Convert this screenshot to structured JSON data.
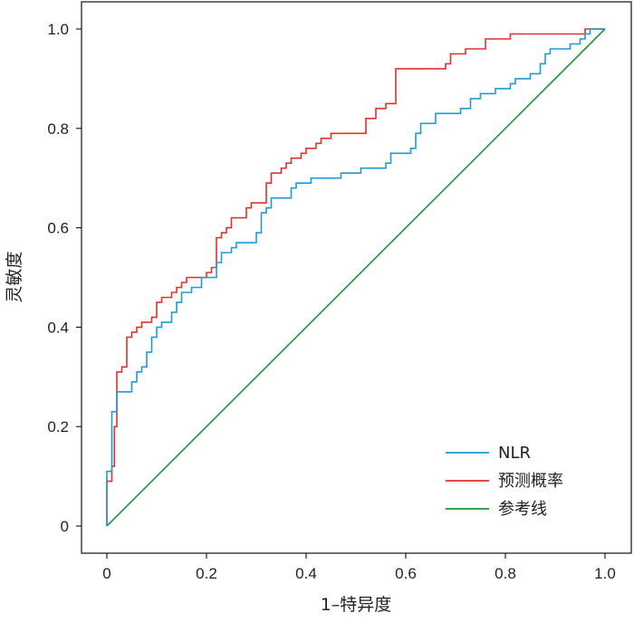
{
  "chart_data": {
    "type": "line",
    "title": "",
    "xlabel": "1–特异度",
    "ylabel": "灵敏度",
    "xlim": [
      0,
      1
    ],
    "ylim": [
      0,
      1
    ],
    "xticks": [
      "0",
      "0.2",
      "0.4",
      "0.6",
      "0.8",
      "1.0"
    ],
    "yticks": [
      "0",
      "0.2",
      "0.4",
      "0.6",
      "0.8",
      "1.0"
    ],
    "grid": false,
    "legend_position": "bottom-right",
    "series": [
      {
        "name": "NLR",
        "color": "#1f9ad6",
        "points": [
          [
            0,
            0
          ],
          [
            0,
            0.11
          ],
          [
            0.01,
            0.11
          ],
          [
            0.01,
            0.23
          ],
          [
            0.02,
            0.23
          ],
          [
            0.02,
            0.27
          ],
          [
            0.05,
            0.27
          ],
          [
            0.05,
            0.29
          ],
          [
            0.06,
            0.29
          ],
          [
            0.06,
            0.31
          ],
          [
            0.07,
            0.31
          ],
          [
            0.07,
            0.32
          ],
          [
            0.08,
            0.32
          ],
          [
            0.08,
            0.35
          ],
          [
            0.09,
            0.35
          ],
          [
            0.09,
            0.38
          ],
          [
            0.1,
            0.38
          ],
          [
            0.1,
            0.4
          ],
          [
            0.11,
            0.4
          ],
          [
            0.11,
            0.41
          ],
          [
            0.13,
            0.41
          ],
          [
            0.13,
            0.43
          ],
          [
            0.14,
            0.43
          ],
          [
            0.14,
            0.45
          ],
          [
            0.15,
            0.45
          ],
          [
            0.15,
            0.47
          ],
          [
            0.17,
            0.47
          ],
          [
            0.17,
            0.48
          ],
          [
            0.19,
            0.48
          ],
          [
            0.19,
            0.5
          ],
          [
            0.22,
            0.5
          ],
          [
            0.22,
            0.53
          ],
          [
            0.23,
            0.53
          ],
          [
            0.23,
            0.55
          ],
          [
            0.25,
            0.55
          ],
          [
            0.25,
            0.56
          ],
          [
            0.26,
            0.56
          ],
          [
            0.26,
            0.57
          ],
          [
            0.3,
            0.57
          ],
          [
            0.3,
            0.59
          ],
          [
            0.31,
            0.59
          ],
          [
            0.31,
            0.63
          ],
          [
            0.32,
            0.63
          ],
          [
            0.32,
            0.64
          ],
          [
            0.33,
            0.64
          ],
          [
            0.33,
            0.66
          ],
          [
            0.37,
            0.66
          ],
          [
            0.37,
            0.68
          ],
          [
            0.38,
            0.68
          ],
          [
            0.38,
            0.69
          ],
          [
            0.41,
            0.69
          ],
          [
            0.41,
            0.7
          ],
          [
            0.47,
            0.7
          ],
          [
            0.47,
            0.71
          ],
          [
            0.51,
            0.71
          ],
          [
            0.51,
            0.72
          ],
          [
            0.56,
            0.72
          ],
          [
            0.56,
            0.73
          ],
          [
            0.57,
            0.73
          ],
          [
            0.57,
            0.75
          ],
          [
            0.61,
            0.75
          ],
          [
            0.61,
            0.76
          ],
          [
            0.62,
            0.76
          ],
          [
            0.62,
            0.79
          ],
          [
            0.63,
            0.79
          ],
          [
            0.63,
            0.81
          ],
          [
            0.66,
            0.81
          ],
          [
            0.66,
            0.83
          ],
          [
            0.71,
            0.83
          ],
          [
            0.71,
            0.84
          ],
          [
            0.73,
            0.84
          ],
          [
            0.73,
            0.86
          ],
          [
            0.75,
            0.86
          ],
          [
            0.75,
            0.87
          ],
          [
            0.78,
            0.87
          ],
          [
            0.78,
            0.88
          ],
          [
            0.81,
            0.88
          ],
          [
            0.81,
            0.89
          ],
          [
            0.82,
            0.89
          ],
          [
            0.82,
            0.9
          ],
          [
            0.85,
            0.9
          ],
          [
            0.85,
            0.91
          ],
          [
            0.87,
            0.91
          ],
          [
            0.87,
            0.93
          ],
          [
            0.88,
            0.93
          ],
          [
            0.88,
            0.95
          ],
          [
            0.89,
            0.95
          ],
          [
            0.89,
            0.96
          ],
          [
            0.93,
            0.96
          ],
          [
            0.93,
            0.97
          ],
          [
            0.95,
            0.97
          ],
          [
            0.95,
            0.98
          ],
          [
            0.96,
            0.98
          ],
          [
            0.96,
            0.99
          ],
          [
            0.97,
            0.99
          ],
          [
            0.97,
            1.0
          ],
          [
            1.0,
            1.0
          ]
        ]
      },
      {
        "name": "预测概率",
        "color": "#e0312b",
        "points": [
          [
            0,
            0
          ],
          [
            0,
            0.09
          ],
          [
            0.01,
            0.09
          ],
          [
            0.01,
            0.12
          ],
          [
            0.015,
            0.12
          ],
          [
            0.015,
            0.2
          ],
          [
            0.02,
            0.2
          ],
          [
            0.02,
            0.31
          ],
          [
            0.03,
            0.31
          ],
          [
            0.03,
            0.32
          ],
          [
            0.04,
            0.32
          ],
          [
            0.04,
            0.38
          ],
          [
            0.05,
            0.38
          ],
          [
            0.05,
            0.39
          ],
          [
            0.06,
            0.39
          ],
          [
            0.06,
            0.4
          ],
          [
            0.07,
            0.4
          ],
          [
            0.07,
            0.41
          ],
          [
            0.09,
            0.41
          ],
          [
            0.09,
            0.42
          ],
          [
            0.1,
            0.42
          ],
          [
            0.1,
            0.45
          ],
          [
            0.11,
            0.45
          ],
          [
            0.11,
            0.46
          ],
          [
            0.13,
            0.46
          ],
          [
            0.13,
            0.47
          ],
          [
            0.14,
            0.47
          ],
          [
            0.14,
            0.48
          ],
          [
            0.15,
            0.48
          ],
          [
            0.15,
            0.49
          ],
          [
            0.16,
            0.49
          ],
          [
            0.16,
            0.5
          ],
          [
            0.2,
            0.5
          ],
          [
            0.2,
            0.51
          ],
          [
            0.21,
            0.51
          ],
          [
            0.21,
            0.52
          ],
          [
            0.22,
            0.52
          ],
          [
            0.22,
            0.58
          ],
          [
            0.23,
            0.58
          ],
          [
            0.23,
            0.59
          ],
          [
            0.24,
            0.59
          ],
          [
            0.24,
            0.6
          ],
          [
            0.25,
            0.6
          ],
          [
            0.25,
            0.62
          ],
          [
            0.28,
            0.62
          ],
          [
            0.28,
            0.64
          ],
          [
            0.29,
            0.64
          ],
          [
            0.29,
            0.65
          ],
          [
            0.32,
            0.65
          ],
          [
            0.32,
            0.69
          ],
          [
            0.33,
            0.69
          ],
          [
            0.33,
            0.71
          ],
          [
            0.35,
            0.71
          ],
          [
            0.35,
            0.72
          ],
          [
            0.36,
            0.72
          ],
          [
            0.36,
            0.73
          ],
          [
            0.37,
            0.73
          ],
          [
            0.37,
            0.74
          ],
          [
            0.39,
            0.74
          ],
          [
            0.39,
            0.75
          ],
          [
            0.4,
            0.75
          ],
          [
            0.4,
            0.76
          ],
          [
            0.42,
            0.76
          ],
          [
            0.42,
            0.77
          ],
          [
            0.43,
            0.77
          ],
          [
            0.43,
            0.78
          ],
          [
            0.45,
            0.78
          ],
          [
            0.45,
            0.79
          ],
          [
            0.52,
            0.79
          ],
          [
            0.52,
            0.82
          ],
          [
            0.54,
            0.82
          ],
          [
            0.54,
            0.84
          ],
          [
            0.56,
            0.84
          ],
          [
            0.56,
            0.85
          ],
          [
            0.58,
            0.85
          ],
          [
            0.58,
            0.92
          ],
          [
            0.68,
            0.92
          ],
          [
            0.68,
            0.93
          ],
          [
            0.69,
            0.93
          ],
          [
            0.69,
            0.95
          ],
          [
            0.72,
            0.95
          ],
          [
            0.72,
            0.96
          ],
          [
            0.76,
            0.96
          ],
          [
            0.76,
            0.98
          ],
          [
            0.81,
            0.98
          ],
          [
            0.81,
            0.99
          ],
          [
            0.96,
            0.99
          ],
          [
            0.96,
            1.0
          ],
          [
            1.0,
            1.0
          ]
        ]
      },
      {
        "name": "参考线",
        "color": "#17973a",
        "points": [
          [
            0,
            0
          ],
          [
            1,
            1
          ]
        ]
      }
    ]
  }
}
